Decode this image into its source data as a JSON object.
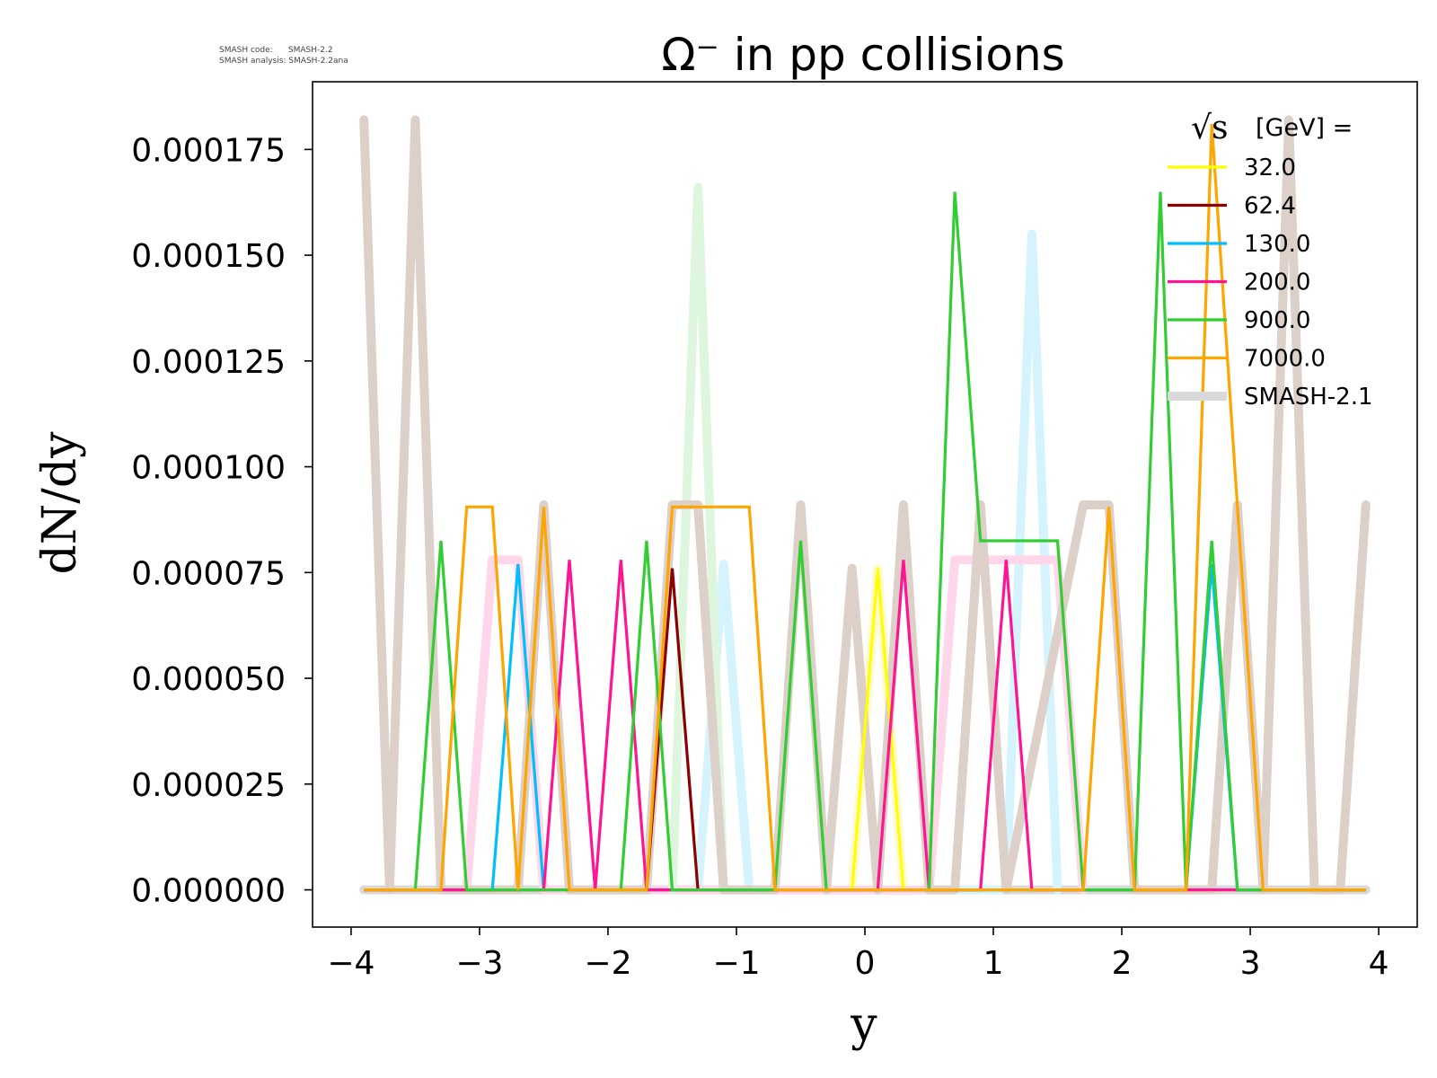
{
  "chart_data": {
    "type": "line",
    "title": "Ω⁻ in pp collisions",
    "xlabel": "y",
    "ylabel": "dN/dy",
    "xlim": [
      -4.3,
      4.3
    ],
    "ylim": [
      -8.8e-06,
      0.000191
    ],
    "x_ticks": [
      -4,
      -3,
      -2,
      -1,
      0,
      1,
      2,
      3,
      4
    ],
    "x_tick_labels": [
      "−4",
      "−3",
      "−2",
      "−1",
      "0",
      "1",
      "2",
      "3",
      "4"
    ],
    "y_ticks": [
      0,
      2.5e-05,
      5e-05,
      7.5e-05,
      0.0001,
      0.000125,
      0.00015,
      0.000175
    ],
    "y_tick_labels": [
      "0.000000",
      "0.000025",
      "0.000050",
      "0.000075",
      "0.000100",
      "0.000125",
      "0.000150",
      "0.000175"
    ],
    "grid": false,
    "legend": {
      "placement": "top-right",
      "title_prefix": "√s",
      "title_suffix": "[GeV] ="
    },
    "annotation": {
      "line1": "SMASH code:      SMASH-2.2",
      "line2": "SMASH analysis: SMASH-2.2ana"
    },
    "series": [
      {
        "name": "32.0",
        "color": "#ffff00",
        "x": [
          -3.9,
          -0.1,
          0.1,
          0.3,
          3.9
        ],
        "y": [
          0,
          0,
          7.6e-05,
          0,
          0
        ]
      },
      {
        "name": "62.4",
        "color": "#8b0000",
        "x": [
          -1.7,
          -1.5,
          -1.3
        ],
        "y": [
          0,
          7.6e-05,
          0
        ]
      },
      {
        "name": "130.0",
        "color": "#00bfff",
        "x": [
          -3.9,
          -2.9,
          -2.7,
          -2.5,
          2.5,
          2.7,
          2.9,
          3.1,
          3.9
        ],
        "y": [
          0,
          0,
          7.7e-05,
          0,
          0,
          7.7e-05,
          0,
          0,
          0
        ]
      },
      {
        "name": "200.0",
        "color": "#ff1493",
        "x": [
          -3.9,
          -2.5,
          -2.3,
          -2.1,
          -1.9,
          -1.7,
          0.1,
          0.3,
          0.5,
          0.9,
          1.1,
          1.3,
          3.9
        ],
        "y": [
          0,
          0,
          7.8e-05,
          0,
          7.8e-05,
          0,
          0,
          7.8e-05,
          0,
          0,
          7.8e-05,
          0,
          0
        ]
      },
      {
        "name": "900.0",
        "color": "#32cd32",
        "x": [
          -3.5,
          -3.3,
          -3.1,
          -1.9,
          -1.7,
          -1.5,
          -0.7,
          -0.5,
          -0.3,
          0.5,
          0.7,
          0.9,
          1.5,
          1.7,
          2.1,
          2.3,
          2.5,
          2.7,
          2.9,
          3.9
        ],
        "y": [
          0,
          8.25e-05,
          0,
          0,
          8.25e-05,
          0,
          0,
          8.25e-05,
          0,
          0,
          0.000165,
          8.25e-05,
          8.25e-05,
          0,
          0,
          0.000165,
          0,
          8.25e-05,
          0,
          0
        ]
      },
      {
        "name": "7000.0",
        "color": "#ffa500",
        "x": [
          -3.9,
          -3.3,
          -3.1,
          -2.9,
          -2.7,
          -2.5,
          -2.3,
          -1.7,
          -1.5,
          -0.9,
          -0.7,
          1.7,
          1.9,
          2.1,
          2.5,
          2.7,
          2.9,
          3.1,
          3.9
        ],
        "y": [
          0,
          0,
          9.05e-05,
          9.05e-05,
          0,
          9.05e-05,
          0,
          0,
          9.05e-05,
          9.05e-05,
          0,
          0,
          9.05e-05,
          0,
          0,
          0.000181,
          9.05e-05,
          0,
          0
        ]
      }
    ],
    "reference": {
      "name": "SMASH-2.1",
      "color": "#d9d9d9",
      "series": [
        {
          "color": "#fffacd",
          "x": [
            -0.1,
            0.1,
            0.3
          ],
          "y": [
            0,
            7.6e-05,
            0
          ]
        },
        {
          "color": "#d4f3fd",
          "x": [
            -1.3,
            -1.1,
            -0.9,
            1.1,
            1.3,
            1.5
          ],
          "y": [
            0,
            7.7e-05,
            0,
            0,
            0.000155,
            0
          ]
        },
        {
          "color": "#ffd6ea",
          "x": [
            -3.1,
            -2.9,
            -2.7,
            -2.5,
            0.5,
            0.7,
            0.9,
            1.1,
            1.5,
            1.7
          ],
          "y": [
            0,
            7.8e-05,
            7.8e-05,
            0,
            0,
            7.8e-05,
            7.8e-05,
            7.8e-05,
            7.8e-05,
            0
          ]
        },
        {
          "color": "#ddf6dd",
          "x": [
            -1.5,
            -1.3,
            -1.1
          ],
          "y": [
            0,
            0.000166,
            0
          ]
        },
        {
          "color": "#ddd0c8",
          "x": [
            -3.9,
            -3.7,
            -3.5,
            -3.3,
            -2.7,
            -2.5,
            -2.3,
            -1.7,
            -1.5,
            -1.3,
            -1.1,
            -0.7,
            -0.5,
            -0.3,
            -0.1,
            0.1,
            0.3,
            0.5,
            0.7,
            0.9,
            1.1,
            1.7,
            1.9,
            2.1,
            2.7,
            2.9,
            3.1,
            3.3,
            3.5,
            3.7,
            3.9
          ],
          "y": [
            0.000182,
            0,
            0.000182,
            0,
            0,
            9.1e-05,
            0,
            0,
            9.1e-05,
            9.1e-05,
            0,
            0,
            9.1e-05,
            0,
            7.6e-05,
            0,
            9.1e-05,
            0,
            0,
            9.1e-05,
            0,
            9.1e-05,
            9.1e-05,
            0,
            0,
            9.1e-05,
            0,
            0.000182,
            0,
            0,
            9.1e-05
          ]
        }
      ]
    }
  }
}
